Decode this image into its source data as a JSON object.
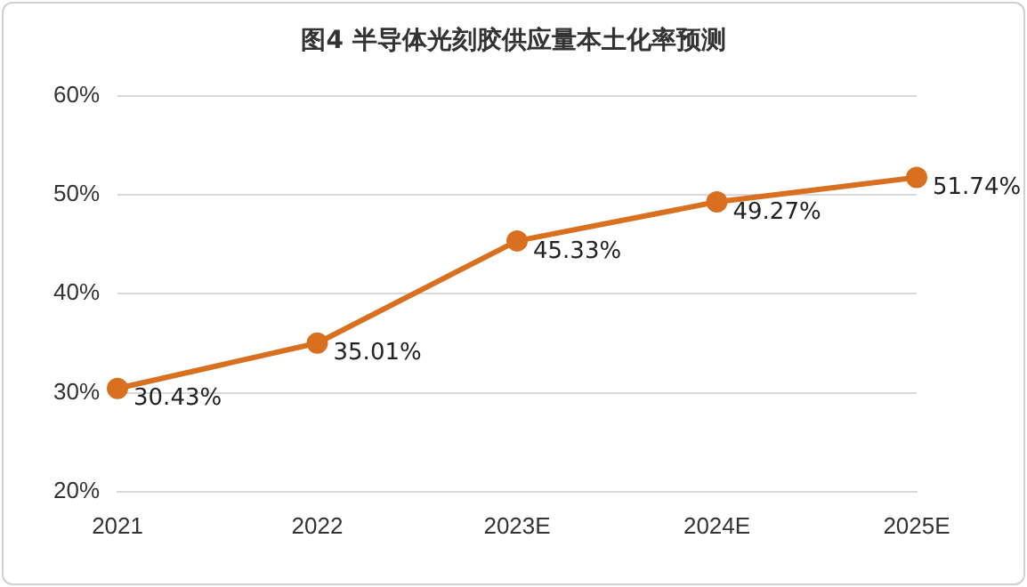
{
  "chart_data": {
    "type": "line",
    "title": "图4 半导体光刻胶供应量本土化率预测",
    "categories": [
      "2021",
      "2022",
      "2023E",
      "2024E",
      "2025E"
    ],
    "series": [
      {
        "color": "#d9701f",
        "values": [
          30.43,
          35.01,
          45.33,
          49.27,
          51.74
        ],
        "value_labels": [
          "30.43%",
          "35.01%",
          "45.33%",
          "49.27%",
          "51.74%"
        ]
      }
    ],
    "ylim": [
      20,
      60
    ],
    "yticks": [
      {
        "value": 20,
        "label": "20%"
      },
      {
        "value": 30,
        "label": "30%"
      },
      {
        "value": 40,
        "label": "40%"
      },
      {
        "value": 50,
        "label": "50%"
      },
      {
        "value": 60,
        "label": "60%"
      }
    ],
    "grid": "y",
    "legend": false,
    "marker": "circle",
    "line_style": "solid"
  }
}
